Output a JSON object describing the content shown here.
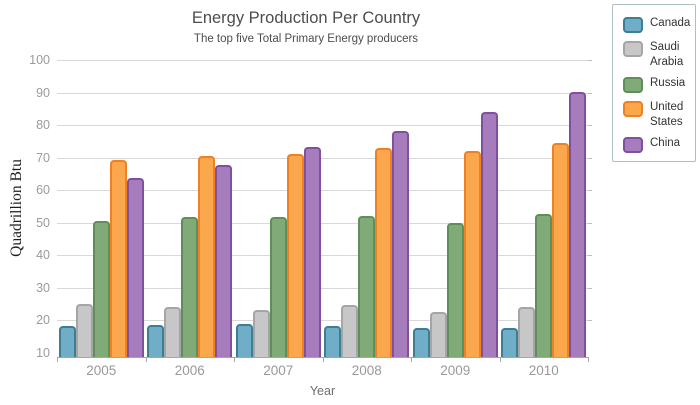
{
  "header": {
    "title": "Energy Production Per Country",
    "subtitle": "The top five Total Primary Energy producers"
  },
  "chart_data": {
    "type": "bar",
    "title": "Energy Production Per Country",
    "subtitle": "The top five Total Primary Energy producers",
    "xlabel": "Year",
    "ylabel": "Quadrillion Btu",
    "categories": [
      "2005",
      "2006",
      "2007",
      "2008",
      "2009",
      "2010"
    ],
    "y_ticks": [
      10,
      20,
      30,
      40,
      50,
      60,
      70,
      80,
      90,
      100
    ],
    "ylim": [
      8.7,
      100
    ],
    "grid": true,
    "legend_position": "outside-top-right",
    "series": [
      {
        "name": "Canada",
        "fill": "#6FAEC6",
        "stroke": "#3D7E95",
        "values": [
          18.2,
          18.5,
          19.0,
          18.2,
          17.6,
          17.7
        ]
      },
      {
        "name": "Saudi Arabia",
        "fill": "#C7C7C7",
        "stroke": "#A5A5A5",
        "values": [
          25.0,
          24.0,
          23.2,
          24.7,
          22.4,
          24.1
        ]
      },
      {
        "name": "Russia",
        "fill": "#80AB79",
        "stroke": "#5F8F58",
        "values": [
          50.5,
          51.6,
          51.8,
          52.0,
          50.0,
          52.6
        ]
      },
      {
        "name": "United States",
        "fill": "#FAA74E",
        "stroke": "#EF8122",
        "values": [
          69.2,
          70.5,
          71.0,
          72.9,
          72.1,
          74.4
        ]
      },
      {
        "name": "China",
        "fill": "#A77CBD",
        "stroke": "#7E509E",
        "values": [
          63.7,
          67.8,
          73.2,
          78.3,
          83.9,
          90.3
        ]
      }
    ]
  },
  "colors": {
    "background": "#ffffff",
    "gridline": "#d9d9d9",
    "axis_line": "#a6a6a6",
    "tick_label": "#9b9b9b",
    "title_text": "#4d4d4d",
    "legend_border": "#aebfca",
    "legend_text": "#333333"
  }
}
